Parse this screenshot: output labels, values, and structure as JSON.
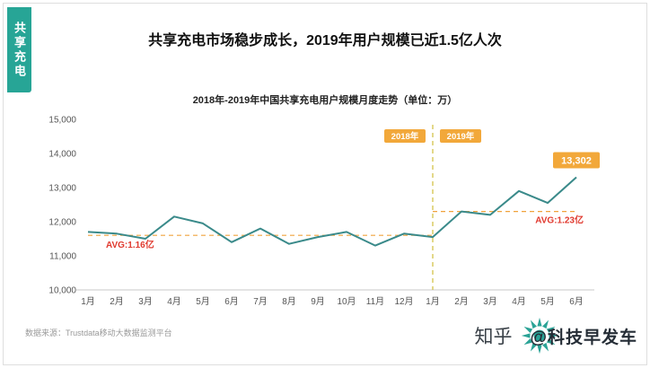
{
  "sidebar": {
    "label": "共享充电",
    "color": "#27a596"
  },
  "header": {
    "title": "共享充电市场稳步成长，2019年用户规模已近1.5亿人次"
  },
  "chart_data": {
    "type": "line",
    "title": "2018年-2019年中国共享充电用户规模月度走势（单位：万）",
    "unit": "万",
    "x_labels": [
      "1月",
      "2月",
      "3月",
      "4月",
      "5月",
      "6月",
      "7月",
      "8月",
      "9月",
      "10月",
      "11月",
      "12月",
      "1月",
      "2月",
      "3月",
      "4月",
      "5月",
      "6月"
    ],
    "values": [
      11700,
      11650,
      11500,
      12150,
      11950,
      11400,
      11800,
      11350,
      11550,
      11700,
      11300,
      11650,
      11550,
      12300,
      12200,
      12900,
      12550,
      13302
    ],
    "ylim": [
      10000,
      15000
    ],
    "y_ticks": [
      {
        "value": 10000,
        "label": "10,000"
      },
      {
        "value": 11000,
        "label": "11,000"
      },
      {
        "value": 12000,
        "label": "12,000"
      },
      {
        "value": 13000,
        "label": "13,000"
      },
      {
        "value": 14000,
        "label": "14,000"
      },
      {
        "value": 15000,
        "label": "15,000"
      }
    ],
    "divider_index": 12,
    "year_badges": [
      "2018年",
      "2019年"
    ],
    "avg_segments": [
      {
        "from": 0,
        "to": 12,
        "value": 11600,
        "label": "AVG:1.16亿"
      },
      {
        "from": 12,
        "to": 17,
        "value": 12300,
        "label": "AVG:1.23亿"
      }
    ],
    "end_label": {
      "index": 17,
      "text": "13,302"
    },
    "grid": false,
    "legend": "none",
    "colors": {
      "line": "#3a8a8a",
      "avg_line": "#f0a33c",
      "avg_text": "#e03a2f",
      "divider": "#d4c44a",
      "badge": "#f2a83a",
      "axis": "#c9c9c9",
      "tick_text": "#555555"
    }
  },
  "footer": {
    "source": "数据来源：Trustdata移动大数据监测平台",
    "watermark_prefix": "知乎",
    "watermark_handle": "@科技早发车",
    "logo_color": "#2aa396"
  }
}
